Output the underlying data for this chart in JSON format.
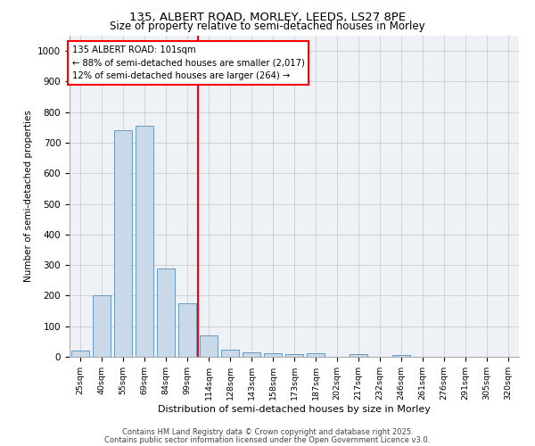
{
  "title_line1": "135, ALBERT ROAD, MORLEY, LEEDS, LS27 8PE",
  "title_line2": "Size of property relative to semi-detached houses in Morley",
  "xlabel": "Distribution of semi-detached houses by size in Morley",
  "ylabel": "Number of semi-detached properties",
  "categories": [
    "25sqm",
    "40sqm",
    "55sqm",
    "69sqm",
    "84sqm",
    "99sqm",
    "114sqm",
    "128sqm",
    "143sqm",
    "158sqm",
    "173sqm",
    "187sqm",
    "202sqm",
    "217sqm",
    "232sqm",
    "246sqm",
    "261sqm",
    "276sqm",
    "291sqm",
    "305sqm",
    "320sqm"
  ],
  "values": [
    20,
    200,
    740,
    755,
    290,
    175,
    70,
    22,
    16,
    12,
    8,
    12,
    0,
    8,
    0,
    5,
    0,
    0,
    0,
    0,
    0
  ],
  "bar_color": "#c9d9e8",
  "bar_edge_color": "#5b8db8",
  "vline_x": 5.5,
  "vline_color": "red",
  "ylim": [
    0,
    1050
  ],
  "yticks": [
    0,
    100,
    200,
    300,
    400,
    500,
    600,
    700,
    800,
    900,
    1000
  ],
  "annotation_title": "135 ALBERT ROAD: 101sqm",
  "annotation_line1": "← 88% of semi-detached houses are smaller (2,017)",
  "annotation_line2": "12% of semi-detached houses are larger (264) →",
  "grid_color": "#cccccc",
  "bg_color": "#eef2f7",
  "footer_line1": "Contains HM Land Registry data © Crown copyright and database right 2025.",
  "footer_line2": "Contains public sector information licensed under the Open Government Licence v3.0."
}
